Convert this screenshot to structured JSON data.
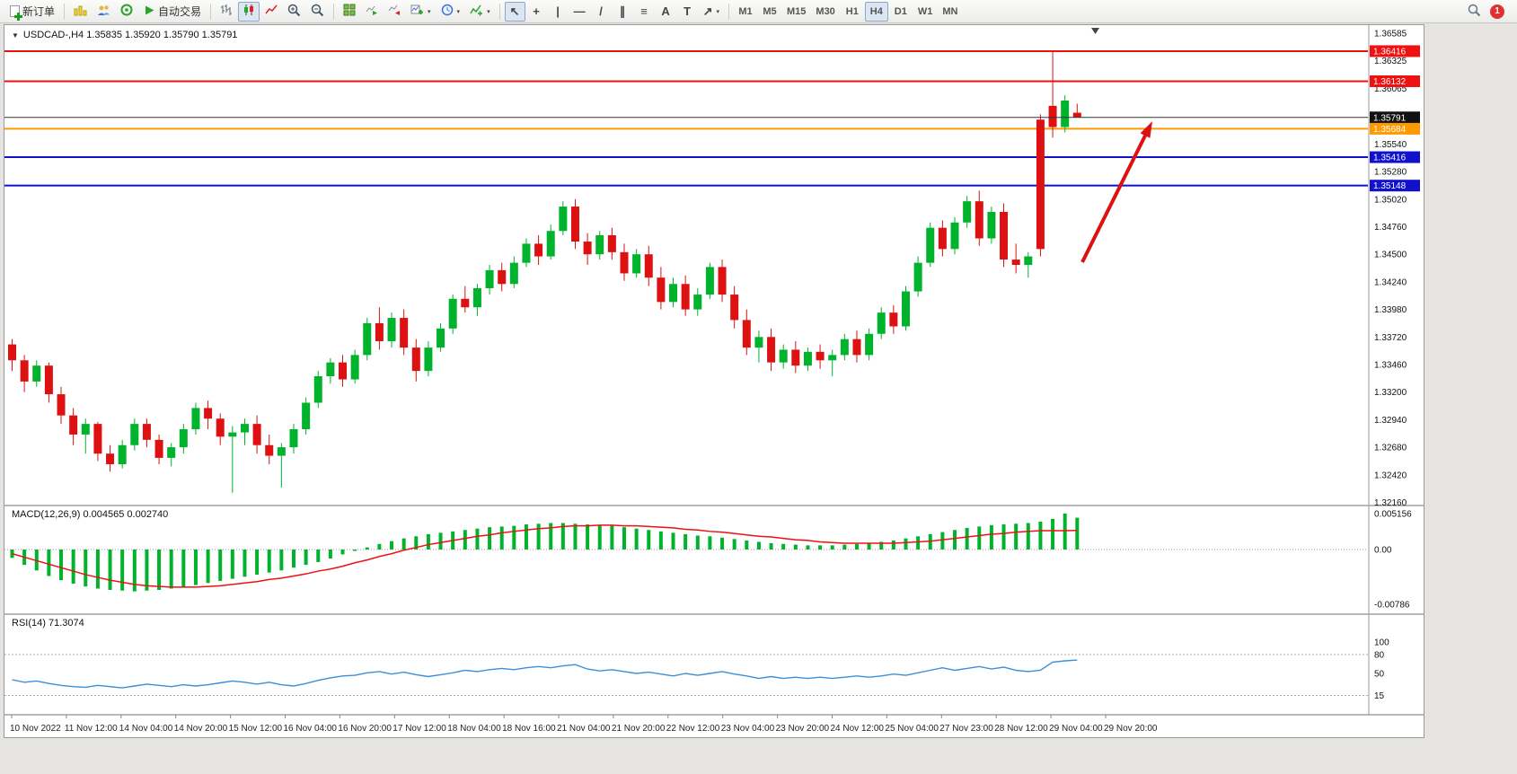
{
  "toolbar": {
    "new_order_label": "新订单",
    "autotrading_label": "自动交易",
    "periods": [
      "M1",
      "M5",
      "M15",
      "M30",
      "H1",
      "H4",
      "D1",
      "W1",
      "MN"
    ],
    "active_period": "H4",
    "notification_count": "1",
    "glyphs": {
      "cursor": "↖",
      "crosshair": "+",
      "vline": "|",
      "hline": "—",
      "trendline": "/",
      "channel": "∥",
      "fibonacci": "≡",
      "text_tool": "A",
      "label_tool": "T",
      "shapes": "↗",
      "dropdown": "▾"
    },
    "icon_names": [
      "new-order",
      "charts",
      "profiles",
      "sounds",
      "autotrading",
      "bar-chart",
      "candlestick-chart",
      "line-chart",
      "zoom-in",
      "zoom-out",
      "tile-windows",
      "auto-scroll",
      "chart-shift",
      "new-chart",
      "timeframes-clock",
      "indicators",
      "cursor",
      "crosshair",
      "vertical-line",
      "horizontal-line",
      "trendline",
      "equidistant-channel",
      "fibonacci-retracement",
      "text",
      "text-label",
      "arrow-shapes",
      "search",
      "notification"
    ]
  },
  "chart_header": {
    "collapse_glyph": "▼",
    "symbol_line": "USDCAD-,H4 1.35835 1.35920 1.35790 1.35791"
  },
  "price_axis": {
    "labels": [
      {
        "text": "1.36585",
        "price": 1.36585
      },
      {
        "text": "1.36325",
        "price": 1.36325
      },
      {
        "text": "1.36065",
        "price": 1.36065
      },
      {
        "text": "1.35540",
        "price": 1.3554
      },
      {
        "text": "1.35280",
        "price": 1.3528
      },
      {
        "text": "1.35020",
        "price": 1.3502
      },
      {
        "text": "1.34760",
        "price": 1.3476
      },
      {
        "text": "1.34500",
        "price": 1.345
      },
      {
        "text": "1.34240",
        "price": 1.3424
      },
      {
        "text": "1.33980",
        "price": 1.3398
      },
      {
        "text": "1.33720",
        "price": 1.3372
      },
      {
        "text": "1.33460",
        "price": 1.3346
      },
      {
        "text": "1.33200",
        "price": 1.332
      },
      {
        "text": "1.32940",
        "price": 1.3294
      },
      {
        "text": "1.32680",
        "price": 1.3268
      },
      {
        "text": "1.32420",
        "price": 1.3242
      },
      {
        "text": "1.32160",
        "price": 1.3216
      }
    ],
    "badges": [
      {
        "text": "1.36416",
        "price": 1.36416,
        "color": "#ee1111"
      },
      {
        "text": "1.36132",
        "price": 1.36132,
        "color": "#ee1111"
      },
      {
        "text": "1.35791",
        "price": 1.35791,
        "color": "#111111"
      },
      {
        "text": "1.35684",
        "price": 1.35684,
        "color": "#ff9900"
      },
      {
        "text": "1.35416",
        "price": 1.35416,
        "color": "#1111cc"
      },
      {
        "text": "1.35148",
        "price": 1.35148,
        "color": "#1111cc"
      }
    ]
  },
  "time_axis": [
    "10 Nov 2022",
    "11 Nov 12:00",
    "14 Nov 04:00",
    "14 Nov 20:00",
    "15 Nov 12:00",
    "16 Nov 04:00",
    "16 Nov 20:00",
    "17 Nov 12:00",
    "18 Nov 04:00",
    "18 Nov 16:00",
    "21 Nov 04:00",
    "21 Nov 20:00",
    "22 Nov 12:00",
    "23 Nov 04:00",
    "23 Nov 20:00",
    "24 Nov 12:00",
    "25 Nov 04:00",
    "27 Nov 23:00",
    "28 Nov 12:00",
    "29 Nov 04:00",
    "29 Nov 20:00"
  ],
  "indicators": {
    "macd": {
      "label": "MACD(12,26,9) 0.004565 0.002740",
      "axis": [
        "0.005156",
        "0.00",
        "-0.00786"
      ]
    },
    "rsi": {
      "label": "RSI(14) 71.3074",
      "axis": [
        "100",
        "80",
        "50",
        "15"
      ],
      "levels": [
        80,
        15
      ]
    }
  },
  "annotation_arrow": {
    "color": "#dd1111",
    "direction": "up"
  },
  "chart_data": {
    "type": "candlestick",
    "symbol": "USDCAD",
    "timeframe": "H4",
    "current": {
      "open": 1.35835,
      "high": 1.3592,
      "low": 1.3579,
      "close": 1.35791
    },
    "current_price": 1.35791,
    "price_range": [
      1.3216,
      1.36585
    ],
    "colors": {
      "up": "#00b32c",
      "down": "#dd1111",
      "macd_hist": "#00b32c",
      "macd_signal": "#ee1111",
      "rsi": "#3c8fd6"
    },
    "hlines": [
      {
        "price": 1.36416,
        "color": "#ee1111",
        "width": 2
      },
      {
        "price": 1.36132,
        "color": "#ee1111",
        "width": 2
      },
      {
        "price": 1.35684,
        "color": "#ff9900",
        "width": 2
      },
      {
        "price": 1.35416,
        "color": "#1111cc",
        "width": 2
      },
      {
        "price": 1.35148,
        "color": "#1111cc",
        "width": 2
      }
    ],
    "candles": [
      [
        1.3365,
        1.337,
        1.334,
        1.335
      ],
      [
        1.335,
        1.3355,
        1.332,
        1.333
      ],
      [
        1.333,
        1.335,
        1.3325,
        1.3345
      ],
      [
        1.3345,
        1.3348,
        1.331,
        1.3318
      ],
      [
        1.3318,
        1.3325,
        1.329,
        1.3298
      ],
      [
        1.3298,
        1.3305,
        1.327,
        1.328
      ],
      [
        1.328,
        1.3295,
        1.3262,
        1.329
      ],
      [
        1.329,
        1.3292,
        1.3255,
        1.3262
      ],
      [
        1.3262,
        1.327,
        1.3245,
        1.3252
      ],
      [
        1.3252,
        1.3275,
        1.3248,
        1.327
      ],
      [
        1.327,
        1.3295,
        1.3265,
        1.329
      ],
      [
        1.329,
        1.3295,
        1.3268,
        1.3275
      ],
      [
        1.3275,
        1.328,
        1.3252,
        1.3258
      ],
      [
        1.3258,
        1.3272,
        1.325,
        1.3268
      ],
      [
        1.3268,
        1.329,
        1.3262,
        1.3285
      ],
      [
        1.3285,
        1.331,
        1.328,
        1.3305
      ],
      [
        1.3305,
        1.3312,
        1.3285,
        1.3295
      ],
      [
        1.3295,
        1.33,
        1.327,
        1.3278
      ],
      [
        1.3278,
        1.3288,
        1.3225,
        1.3282
      ],
      [
        1.3282,
        1.3295,
        1.327,
        1.329
      ],
      [
        1.329,
        1.3298,
        1.3262,
        1.327
      ],
      [
        1.327,
        1.328,
        1.3252,
        1.326
      ],
      [
        1.326,
        1.3272,
        1.323,
        1.3268
      ],
      [
        1.3268,
        1.329,
        1.3262,
        1.3285
      ],
      [
        1.3285,
        1.3315,
        1.328,
        1.331
      ],
      [
        1.331,
        1.334,
        1.3305,
        1.3335
      ],
      [
        1.3335,
        1.3352,
        1.3328,
        1.3348
      ],
      [
        1.3348,
        1.3355,
        1.3325,
        1.3332
      ],
      [
        1.3332,
        1.336,
        1.3328,
        1.3355
      ],
      [
        1.3355,
        1.339,
        1.335,
        1.3385
      ],
      [
        1.3385,
        1.34,
        1.336,
        1.3368
      ],
      [
        1.3368,
        1.3395,
        1.3362,
        1.339
      ],
      [
        1.339,
        1.3398,
        1.3355,
        1.3362
      ],
      [
        1.3362,
        1.337,
        1.333,
        1.334
      ],
      [
        1.334,
        1.3368,
        1.3335,
        1.3362
      ],
      [
        1.3362,
        1.3385,
        1.3358,
        1.338
      ],
      [
        1.338,
        1.3412,
        1.3375,
        1.3408
      ],
      [
        1.3408,
        1.342,
        1.3395,
        1.34
      ],
      [
        1.34,
        1.3422,
        1.3392,
        1.3418
      ],
      [
        1.3418,
        1.344,
        1.3412,
        1.3435
      ],
      [
        1.3435,
        1.3442,
        1.3415,
        1.3422
      ],
      [
        1.3422,
        1.3448,
        1.3418,
        1.3442
      ],
      [
        1.3442,
        1.3465,
        1.3438,
        1.346
      ],
      [
        1.346,
        1.3468,
        1.344,
        1.3448
      ],
      [
        1.3448,
        1.3478,
        1.3445,
        1.3472
      ],
      [
        1.3472,
        1.35,
        1.3468,
        1.3495
      ],
      [
        1.3495,
        1.3502,
        1.3455,
        1.3462
      ],
      [
        1.3462,
        1.347,
        1.344,
        1.345
      ],
      [
        1.345,
        1.3472,
        1.3445,
        1.3468
      ],
      [
        1.3468,
        1.3475,
        1.3445,
        1.3452
      ],
      [
        1.3452,
        1.346,
        1.3425,
        1.3432
      ],
      [
        1.3432,
        1.3455,
        1.3428,
        1.345
      ],
      [
        1.345,
        1.3458,
        1.342,
        1.3428
      ],
      [
        1.3428,
        1.3438,
        1.3398,
        1.3405
      ],
      [
        1.3405,
        1.3428,
        1.34,
        1.3422
      ],
      [
        1.3422,
        1.343,
        1.3392,
        1.3398
      ],
      [
        1.3398,
        1.3418,
        1.3392,
        1.3412
      ],
      [
        1.3412,
        1.3442,
        1.3408,
        1.3438
      ],
      [
        1.3438,
        1.3445,
        1.3405,
        1.3412
      ],
      [
        1.3412,
        1.342,
        1.338,
        1.3388
      ],
      [
        1.3388,
        1.3398,
        1.3355,
        1.3362
      ],
      [
        1.3362,
        1.3378,
        1.3348,
        1.3372
      ],
      [
        1.3372,
        1.338,
        1.334,
        1.3348
      ],
      [
        1.3348,
        1.3365,
        1.3342,
        1.336
      ],
      [
        1.336,
        1.3368,
        1.3338,
        1.3345
      ],
      [
        1.3345,
        1.3362,
        1.334,
        1.3358
      ],
      [
        1.3358,
        1.3365,
        1.3342,
        1.335
      ],
      [
        1.335,
        1.336,
        1.3335,
        1.3355
      ],
      [
        1.3355,
        1.3375,
        1.335,
        1.337
      ],
      [
        1.337,
        1.3378,
        1.3348,
        1.3355
      ],
      [
        1.3355,
        1.338,
        1.335,
        1.3375
      ],
      [
        1.3375,
        1.34,
        1.337,
        1.3395
      ],
      [
        1.3395,
        1.3402,
        1.3375,
        1.3382
      ],
      [
        1.3382,
        1.342,
        1.3378,
        1.3415
      ],
      [
        1.3415,
        1.3448,
        1.341,
        1.3442
      ],
      [
        1.3442,
        1.348,
        1.3438,
        1.3475
      ],
      [
        1.3475,
        1.3482,
        1.3448,
        1.3455
      ],
      [
        1.3455,
        1.3485,
        1.345,
        1.348
      ],
      [
        1.348,
        1.3505,
        1.3475,
        1.35
      ],
      [
        1.35,
        1.351,
        1.3458,
        1.3465
      ],
      [
        1.3465,
        1.3495,
        1.346,
        1.349
      ],
      [
        1.349,
        1.3498,
        1.3438,
        1.3445
      ],
      [
        1.3445,
        1.346,
        1.3432,
        1.344
      ],
      [
        1.344,
        1.3452,
        1.3428,
        1.3448
      ],
      [
        1.3577,
        1.3582,
        1.3448,
        1.3455
      ],
      [
        1.359,
        1.3642,
        1.356,
        1.357
      ],
      [
        1.357,
        1.36,
        1.3565,
        1.3595
      ],
      [
        1.35835,
        1.3592,
        1.3579,
        1.35791
      ]
    ],
    "macd_hist": [
      -0.0012,
      -0.0022,
      -0.003,
      -0.0038,
      -0.0044,
      -0.0049,
      -0.0053,
      -0.0056,
      -0.0058,
      -0.0059,
      -0.006,
      -0.0059,
      -0.0058,
      -0.0056,
      -0.0054,
      -0.0051,
      -0.0048,
      -0.0045,
      -0.0042,
      -0.0039,
      -0.0036,
      -0.0033,
      -0.003,
      -0.0026,
      -0.0022,
      -0.0018,
      -0.0013,
      -0.0007,
      -0.0002,
      0.0003,
      0.0008,
      0.0012,
      0.0016,
      0.0019,
      0.0022,
      0.0024,
      0.0026,
      0.0028,
      0.003,
      0.0032,
      0.0033,
      0.0034,
      0.0036,
      0.0037,
      0.0038,
      0.0038,
      0.0037,
      0.0036,
      0.0035,
      0.0034,
      0.0032,
      0.003,
      0.0028,
      0.0026,
      0.0024,
      0.0022,
      0.002,
      0.0019,
      0.0017,
      0.0015,
      0.0013,
      0.0011,
      0.0009,
      0.0008,
      0.0007,
      0.0006,
      0.0006,
      0.0006,
      0.0007,
      0.0008,
      0.0009,
      0.0011,
      0.0013,
      0.0016,
      0.0019,
      0.0022,
      0.0025,
      0.0028,
      0.0031,
      0.0033,
      0.0035,
      0.0036,
      0.0037,
      0.0038,
      0.004,
      0.0044,
      0.00516,
      0.004565
    ],
    "macd_signal": [
      -0.0006,
      -0.0011,
      -0.0016,
      -0.0021,
      -0.0026,
      -0.0031,
      -0.0036,
      -0.004,
      -0.0044,
      -0.0047,
      -0.005,
      -0.0052,
      -0.0053,
      -0.0054,
      -0.0054,
      -0.0054,
      -0.0053,
      -0.0052,
      -0.005,
      -0.0048,
      -0.0046,
      -0.0043,
      -0.0041,
      -0.0038,
      -0.0035,
      -0.0031,
      -0.0028,
      -0.0024,
      -0.0019,
      -0.0015,
      -0.001,
      -0.0006,
      -0.0001,
      0.0003,
      0.0007,
      0.001,
      0.0013,
      0.0016,
      0.0019,
      0.0021,
      0.0024,
      0.0026,
      0.0028,
      0.003,
      0.0031,
      0.0033,
      0.0034,
      0.0034,
      0.0035,
      0.0035,
      0.0034,
      0.0034,
      0.0033,
      0.0032,
      0.0031,
      0.0029,
      0.0028,
      0.0026,
      0.0025,
      0.0023,
      0.0021,
      0.0019,
      0.0018,
      0.0016,
      0.0014,
      0.0013,
      0.0011,
      0.001,
      0.0009,
      0.0009,
      0.0009,
      0.0009,
      0.0009,
      0.001,
      0.0011,
      0.0012,
      0.0014,
      0.0016,
      0.0018,
      0.002,
      0.0022,
      0.0023,
      0.0025,
      0.0026,
      0.0027,
      0.0027,
      0.0027,
      0.00274
    ],
    "rsi": [
      40,
      36,
      38,
      34,
      31,
      29,
      28,
      31,
      29,
      27,
      30,
      33,
      31,
      29,
      32,
      30,
      32,
      35,
      38,
      36,
      33,
      36,
      32,
      30,
      34,
      39,
      43,
      46,
      47,
      51,
      53,
      49,
      52,
      48,
      45,
      48,
      51,
      55,
      53,
      56,
      58,
      56,
      59,
      61,
      59,
      62,
      64,
      57,
      54,
      56,
      53,
      50,
      52,
      49,
      46,
      50,
      47,
      50,
      53,
      49,
      46,
      42,
      45,
      42,
      44,
      42,
      44,
      42,
      44,
      46,
      44,
      46,
      49,
      47,
      51,
      55,
      59,
      55,
      58,
      61,
      57,
      60,
      55,
      53,
      55,
      68,
      70,
      71.3
    ]
  }
}
